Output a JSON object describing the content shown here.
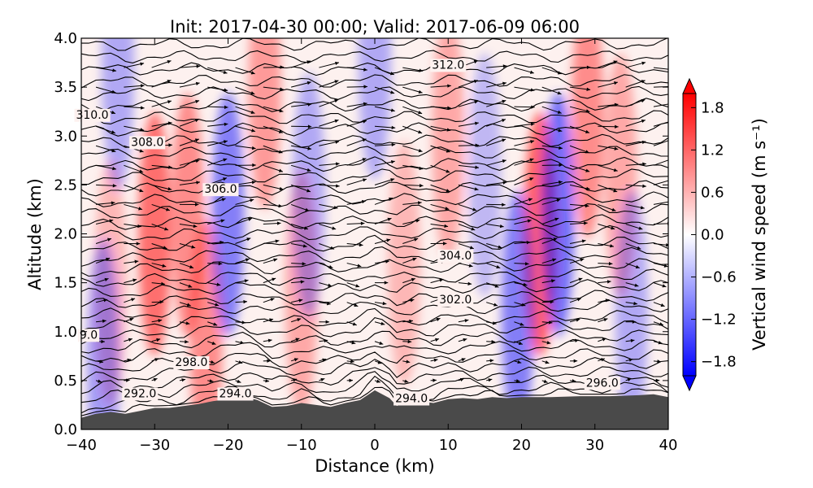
{
  "chart_data": {
    "type": "heatmap",
    "title": "Init: 2017-04-30 00:00; Valid: 2017-06-09 06:00",
    "xlabel": "Distance (km)",
    "ylabel": "Altitude (km)",
    "xlim": [
      -40,
      40
    ],
    "ylim": [
      0.0,
      4.0
    ],
    "x_ticks": [
      "−40",
      "−30",
      "−20",
      "−10",
      "0",
      "10",
      "20",
      "30",
      "40"
    ],
    "y_ticks": [
      "0.0",
      "0.5",
      "1.0",
      "1.5",
      "2.0",
      "2.5",
      "3.0",
      "3.5",
      "4.0"
    ],
    "colorbar": {
      "label": "Vertical wind speed (m s⁻¹)",
      "range": [
        -2.0,
        2.0
      ],
      "ticks": [
        "1.8",
        "1.2",
        "0.6",
        "0.0",
        "−0.6",
        "−1.2",
        "−1.8"
      ],
      "colormap": "bwr",
      "extend": "both"
    },
    "colors": {
      "positive": "#ff0000",
      "negative": "#0000ff",
      "terrain": "#4a4a4a"
    },
    "terrain_height_km": [
      [
        -40,
        0.12
      ],
      [
        -38,
        0.16
      ],
      [
        -36,
        0.18
      ],
      [
        -34,
        0.16
      ],
      [
        -32,
        0.19
      ],
      [
        -30,
        0.22
      ],
      [
        -28,
        0.22
      ],
      [
        -26,
        0.24
      ],
      [
        -24,
        0.26
      ],
      [
        -22,
        0.29
      ],
      [
        -20,
        0.31
      ],
      [
        -18,
        0.34
      ],
      [
        -16,
        0.3
      ],
      [
        -14,
        0.23
      ],
      [
        -12,
        0.24
      ],
      [
        -10,
        0.27
      ],
      [
        -8,
        0.25
      ],
      [
        -6,
        0.23
      ],
      [
        -4,
        0.27
      ],
      [
        -2,
        0.3
      ],
      [
        0,
        0.4
      ],
      [
        2,
        0.32
      ],
      [
        3,
        0.24
      ],
      [
        4,
        0.27
      ],
      [
        6,
        0.29
      ],
      [
        8,
        0.27
      ],
      [
        10,
        0.31
      ],
      [
        12,
        0.32
      ],
      [
        14,
        0.31
      ],
      [
        16,
        0.33
      ],
      [
        18,
        0.32
      ],
      [
        20,
        0.33
      ],
      [
        24,
        0.33
      ],
      [
        28,
        0.34
      ],
      [
        32,
        0.34
      ],
      [
        36,
        0.35
      ],
      [
        38,
        0.36
      ],
      [
        40,
        0.33
      ]
    ],
    "contour_labels": [
      {
        "text": "312.0",
        "x": 10.0,
        "y": 3.73
      },
      {
        "text": "310.0",
        "x": -38.5,
        "y": 3.22
      },
      {
        "text": "308.0",
        "x": -31.0,
        "y": 2.94
      },
      {
        "text": "306.0",
        "x": -21.0,
        "y": 2.46
      },
      {
        "text": "304.0",
        "x": 11.0,
        "y": 1.78
      },
      {
        "text": "302.0",
        "x": 11.0,
        "y": 1.33
      },
      {
        "text": "9.0",
        "x": -39.0,
        "y": 0.97
      },
      {
        "text": "298.0",
        "x": -25.0,
        "y": 0.69
      },
      {
        "text": "296.0",
        "x": 31.0,
        "y": 0.48
      },
      {
        "text": "292.0",
        "x": -32.0,
        "y": 0.37
      },
      {
        "text": "294.0",
        "x": -19.0,
        "y": 0.37
      },
      {
        "text": "294.0",
        "x": 5.0,
        "y": 0.32
      }
    ],
    "wind_fields": {
      "positive_cells": [
        {
          "x": -30.0,
          "y": 2.0,
          "w": 0.9
        },
        {
          "x": -25.5,
          "y": 2.2,
          "w": 0.7
        },
        {
          "x": -23.0,
          "y": 0.9,
          "w": 0.7
        },
        {
          "x": -15.0,
          "y": 3.5,
          "w": 0.6
        },
        {
          "x": 22.5,
          "y": 2.0,
          "w": 1.0
        },
        {
          "x": 29.0,
          "y": 3.2,
          "w": 0.7
        },
        {
          "x": -10.0,
          "y": 1.4,
          "w": 0.5
        },
        {
          "x": 10.0,
          "y": 3.0,
          "w": 0.5
        },
        {
          "x": -36.0,
          "y": 1.5,
          "w": 0.4
        },
        {
          "x": 4.0,
          "y": 1.7,
          "w": 0.4
        },
        {
          "x": 33.5,
          "y": 2.6,
          "w": 0.5
        }
      ],
      "negative_cells": [
        {
          "x": -20.0,
          "y": 2.2,
          "w": -0.8
        },
        {
          "x": -9.0,
          "y": 2.4,
          "w": -0.5
        },
        {
          "x": 19.5,
          "y": 1.2,
          "w": -0.8
        },
        {
          "x": 25.0,
          "y": 2.2,
          "w": -0.9
        },
        {
          "x": -37.0,
          "y": 0.7,
          "w": -0.6
        },
        {
          "x": 0.0,
          "y": 3.8,
          "w": -0.5
        },
        {
          "x": -35.0,
          "y": 3.7,
          "w": -0.5
        },
        {
          "x": 15.0,
          "y": 2.6,
          "w": -0.4
        },
        {
          "x": 35.0,
          "y": 1.2,
          "w": -0.5
        }
      ]
    }
  }
}
